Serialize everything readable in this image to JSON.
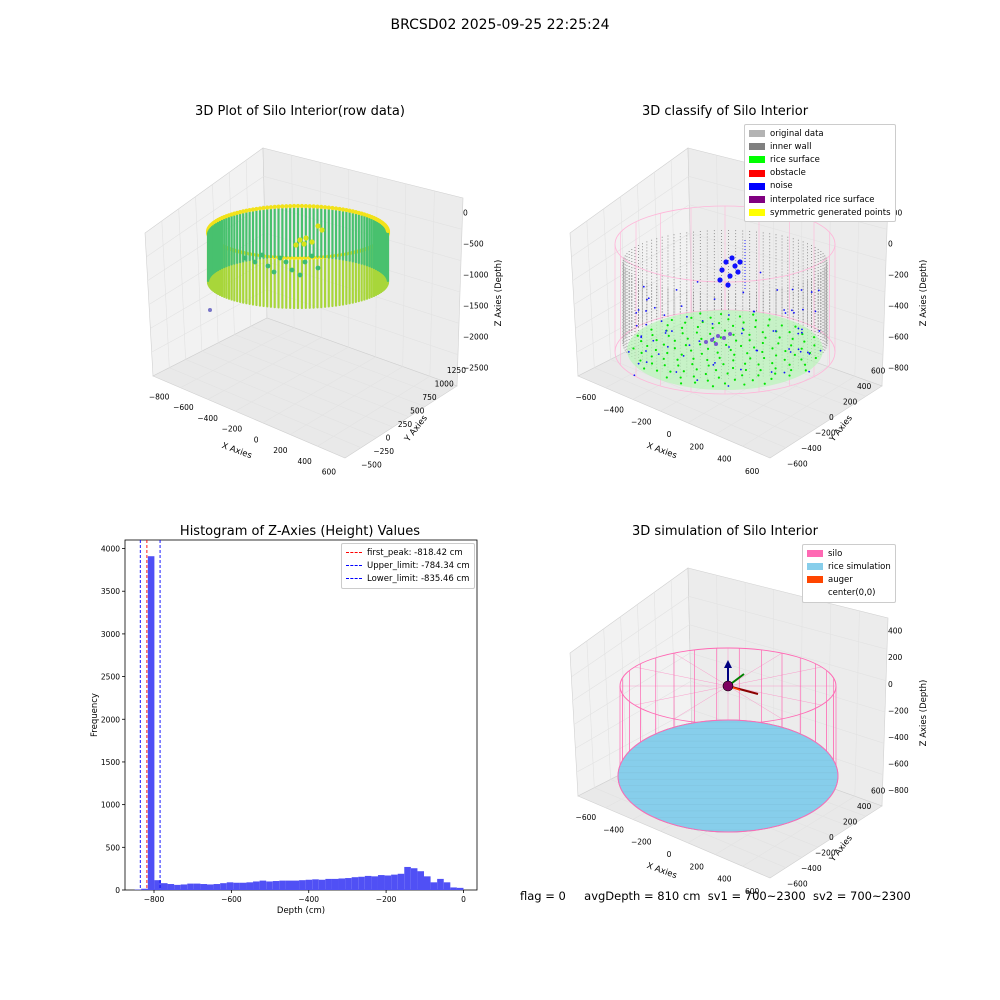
{
  "suptitle": "BRCSD02 2025-09-25 22:25:24",
  "status": {
    "flag": "flag = 0",
    "avg_depth": "avgDepth = 810 cm",
    "sv1": "sv1 = 700~2300",
    "sv2": "sv2 = 700~2300"
  },
  "chart_data": [
    {
      "type": "scatter",
      "title": "3D Plot of Silo Interior(row data)",
      "xlabel": "X Axies",
      "ylabel": "Y Axies",
      "zlabel": "Z Axies (Depth)",
      "x_ticks": [
        "−800",
        "−600",
        "−400",
        "−200",
        "0",
        "200",
        "400",
        "600"
      ],
      "y_ticks": [
        "−500",
        "−250",
        "0",
        "250",
        "500",
        "750",
        "1000",
        "1250"
      ],
      "z_ticks": [
        "0",
        "−500",
        "−1000",
        "−1500",
        "−2000",
        "−2500"
      ],
      "colormap": [
        "#440154",
        "#21908d",
        "#5ec962",
        "#fde725"
      ]
    },
    {
      "type": "scatter",
      "title": "3D classify of Silo Interior",
      "xlabel": "X Axies",
      "ylabel": "Y Axies",
      "zlabel": "Z Axies (Depth)",
      "x_ticks": [
        "−600",
        "−400",
        "−200",
        "0",
        "200",
        "400",
        "600"
      ],
      "y_ticks": [
        "−600",
        "−400",
        "−200",
        "0",
        "200",
        "400",
        "600"
      ],
      "z_ticks": [
        "200",
        "0",
        "−200",
        "−400",
        "−600",
        "−800"
      ],
      "legend": [
        {
          "name": "original data",
          "color": "#b3b3b3"
        },
        {
          "name": "inner wall",
          "color": "#808080"
        },
        {
          "name": "rice surface",
          "color": "#00ff00"
        },
        {
          "name": "obstacle",
          "color": "#ff0000"
        },
        {
          "name": "noise",
          "color": "#0000ff"
        },
        {
          "name": "interpolated rice surface",
          "color": "#800080"
        },
        {
          "name": "symmetric generated points",
          "color": "#ffff00"
        }
      ],
      "silo_color": "#ffb6d9"
    },
    {
      "type": "bar",
      "title": "Histogram of Z-Axies (Height) Values",
      "xlabel": "Depth (cm)",
      "ylabel": "Frequency",
      "xlim": [
        -875,
        35
      ],
      "ylim": [
        0,
        4100
      ],
      "x_ticks": [
        -800,
        -600,
        -400,
        -200,
        0
      ],
      "x_tick_labels": [
        "−800",
        "−600",
        "−400",
        "−200",
        "0"
      ],
      "y_ticks": [
        0,
        500,
        1000,
        1500,
        2000,
        2500,
        3000,
        3500,
        4000
      ],
      "bar_color": "#5050f5",
      "bin_width": 17,
      "bin_left": [
        -850,
        -833,
        -816,
        -799,
        -782,
        -765,
        -748,
        -731,
        -714,
        -697,
        -680,
        -663,
        -646,
        -629,
        -612,
        -595,
        -578,
        -561,
        -544,
        -527,
        -510,
        -493,
        -476,
        -459,
        -442,
        -425,
        -408,
        -391,
        -374,
        -357,
        -340,
        -323,
        -306,
        -289,
        -272,
        -255,
        -238,
        -221,
        -204,
        -187,
        -170,
        -153,
        -136,
        -119,
        -102,
        -85,
        -68,
        -51,
        -34,
        -17
      ],
      "values": [
        5,
        15,
        3910,
        115,
        80,
        70,
        60,
        65,
        75,
        75,
        70,
        65,
        70,
        80,
        90,
        85,
        85,
        90,
        100,
        110,
        100,
        105,
        110,
        110,
        110,
        115,
        120,
        125,
        120,
        130,
        130,
        135,
        140,
        150,
        155,
        165,
        160,
        175,
        170,
        180,
        190,
        270,
        255,
        220,
        160,
        90,
        130,
        90,
        30,
        25
      ],
      "lines": [
        {
          "label": "first_peak: -818.42 cm",
          "x": -818.42,
          "color": "#ff0000"
        },
        {
          "label": "Upper_limit: -784.34 cm",
          "x": -784.34,
          "color": "#0000ff"
        },
        {
          "label": "Lower_limit: -835.46 cm",
          "x": -835.46,
          "color": "#0000ff"
        }
      ]
    },
    {
      "type": "scatter",
      "title": "3D simulation of Silo Interior",
      "xlabel": "X Axies",
      "ylabel": "Y Axies",
      "zlabel": "Z Axies (Depth)",
      "x_ticks": [
        "−600",
        "−400",
        "−200",
        "0",
        "200",
        "400",
        "600"
      ],
      "y_ticks": [
        "−600",
        "−400",
        "−200",
        "0",
        "200",
        "400",
        "600"
      ],
      "z_ticks": [
        "400",
        "200",
        "0",
        "−200",
        "−400",
        "−600",
        "−800"
      ],
      "legend": [
        {
          "name": "silo",
          "color": "#ff69b4"
        },
        {
          "name": "rice simulation",
          "color": "#87ceeb"
        },
        {
          "name": "auger",
          "color": "#ff4500"
        },
        {
          "name": "center(0,0)",
          "color": ""
        }
      ]
    }
  ]
}
